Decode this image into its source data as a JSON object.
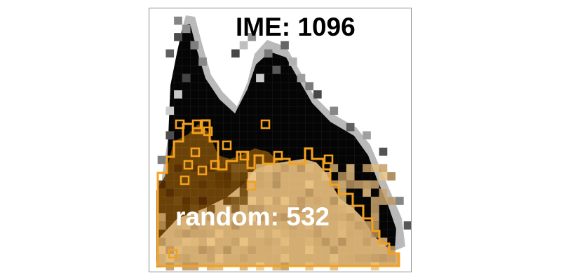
{
  "labels": {
    "ime": "IME: 1096",
    "random": "random: 532"
  },
  "colors": {
    "background": "#ffffff",
    "frame": "#8c8c8c",
    "silhouette": "#050505",
    "outline": "#f5a01a",
    "region_dark": "#6a4208",
    "region_light": "#d3ad72"
  }
}
